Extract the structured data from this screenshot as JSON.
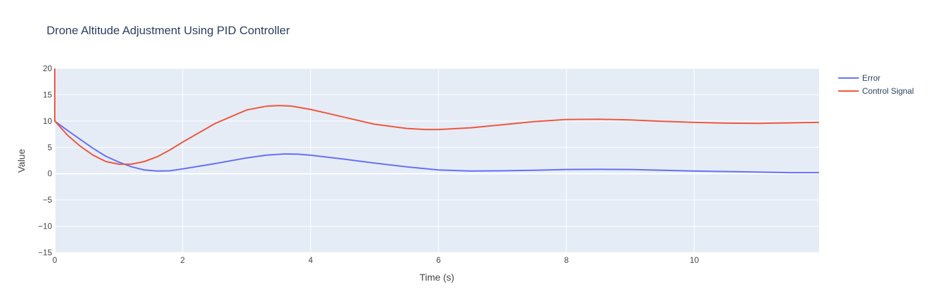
{
  "chart_data": {
    "type": "line",
    "title": "Drone Altitude Adjustment Using PID Controller",
    "xlabel": "Time (s)",
    "ylabel": "Value",
    "xlim": [
      0,
      11.95
    ],
    "ylim": [
      -15,
      20
    ],
    "xticks": [
      0,
      2,
      4,
      6,
      8,
      10
    ],
    "yticks": [
      -15,
      -10,
      -5,
      0,
      5,
      10,
      15,
      20
    ],
    "grid": true,
    "legend_position": "top-right",
    "series": [
      {
        "name": "Error",
        "color": "#636efa",
        "x": [
          0,
          0.2,
          0.4,
          0.6,
          0.8,
          1.0,
          1.2,
          1.4,
          1.6,
          1.8,
          2.0,
          2.5,
          3.0,
          3.3,
          3.6,
          3.8,
          4.0,
          4.5,
          5.0,
          5.5,
          6.0,
          6.5,
          7.0,
          7.5,
          8.0,
          8.5,
          9.0,
          9.5,
          10.0,
          10.5,
          11.0,
          11.5,
          11.95
        ],
        "y": [
          10,
          8.2,
          6.5,
          4.8,
          3.3,
          2.2,
          1.3,
          0.7,
          0.5,
          0.55,
          0.9,
          1.9,
          3.0,
          3.5,
          3.75,
          3.7,
          3.5,
          2.8,
          2.0,
          1.3,
          0.7,
          0.5,
          0.55,
          0.65,
          0.8,
          0.82,
          0.8,
          0.65,
          0.5,
          0.4,
          0.3,
          0.2,
          0.2
        ]
      },
      {
        "name": "Control Signal",
        "color": "#ef553b",
        "x": [
          0,
          0,
          0.2,
          0.4,
          0.6,
          0.8,
          1.0,
          1.2,
          1.4,
          1.6,
          1.8,
          2.0,
          2.5,
          3.0,
          3.3,
          3.5,
          3.7,
          4.0,
          4.5,
          5.0,
          5.5,
          5.8,
          6.0,
          6.5,
          7.0,
          7.5,
          8.0,
          8.5,
          9.0,
          9.5,
          10.0,
          10.5,
          11.0,
          11.5,
          11.95
        ],
        "y": [
          20,
          10,
          7.3,
          5.2,
          3.5,
          2.3,
          1.8,
          1.8,
          2.3,
          3.2,
          4.5,
          6.0,
          9.5,
          12.1,
          12.8,
          12.95,
          12.85,
          12.2,
          10.8,
          9.4,
          8.6,
          8.4,
          8.4,
          8.7,
          9.3,
          9.9,
          10.3,
          10.35,
          10.2,
          9.95,
          9.75,
          9.6,
          9.55,
          9.65,
          9.75
        ]
      }
    ]
  }
}
